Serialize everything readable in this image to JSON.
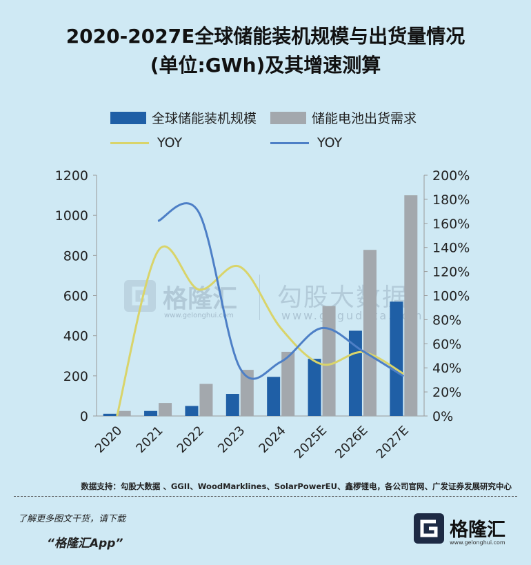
{
  "title_line1": "2020-2027E全球储能装机规模与出货量情况",
  "title_line2": "(单位:GWh)及其增速测算",
  "legend": {
    "installed": "全球储能装机规模",
    "shipments": "储能电池出货需求",
    "yoy_installed": "YOY",
    "yoy_shipments": "YOY"
  },
  "colors": {
    "installed": "#1f5fa6",
    "shipments": "#a3a8ad",
    "yoy_installed": "#d9d46a",
    "yoy_shipments": "#4d7fc6",
    "background": "#cfe9f4"
  },
  "chart_data": {
    "type": "bar",
    "categories": [
      "2020",
      "2021",
      "2022",
      "2023",
      "2024",
      "2025E",
      "2026E",
      "2027E"
    ],
    "series": [
      {
        "name": "全球储能装机规模",
        "type": "bar",
        "axis": "left",
        "values": [
          11,
          25,
          50,
          110,
          195,
          285,
          425,
          570
        ]
      },
      {
        "name": "储能电池出货需求",
        "type": "bar",
        "axis": "right-of-pair",
        "values": [
          25,
          65,
          160,
          230,
          320,
          548,
          828,
          1100
        ]
      },
      {
        "name": "YOY",
        "type": "line",
        "axis": "right",
        "values": [
          0,
          137,
          105,
          124,
          73,
          43,
          53,
          35
        ]
      },
      {
        "name": "YOY",
        "type": "line",
        "axis": "right",
        "values": [
          null,
          162,
          169,
          40,
          45,
          73,
          54,
          33
        ]
      }
    ],
    "ylim_left": [
      0,
      1200
    ],
    "yticks_left": [
      "0",
      "200",
      "400",
      "600",
      "800",
      "1000",
      "1200"
    ],
    "ylim_right": [
      0,
      200
    ],
    "yticks_right": [
      "0%",
      "20%",
      "40%",
      "60%",
      "80%",
      "100%",
      "120%",
      "140%",
      "160%",
      "180%",
      "200%"
    ],
    "legend_position": "top",
    "grid": false
  },
  "source": "数据支持：勾股大数据 、GGII、WoodMarklines、SolarPowerEU、鑫椤锂电，各公司官网、广发证券发展研究中心",
  "footer": {
    "line1": "了解更多图文干货，请下载",
    "line2": "“格隆汇App”"
  },
  "brand": {
    "name": "格隆汇",
    "url": "www.gelonghui.com"
  },
  "watermark": {
    "name1": "格隆汇",
    "url1": "www.gelonghui.com",
    "name2": "勾股大数据",
    "url2": "www.gogudata.com"
  }
}
